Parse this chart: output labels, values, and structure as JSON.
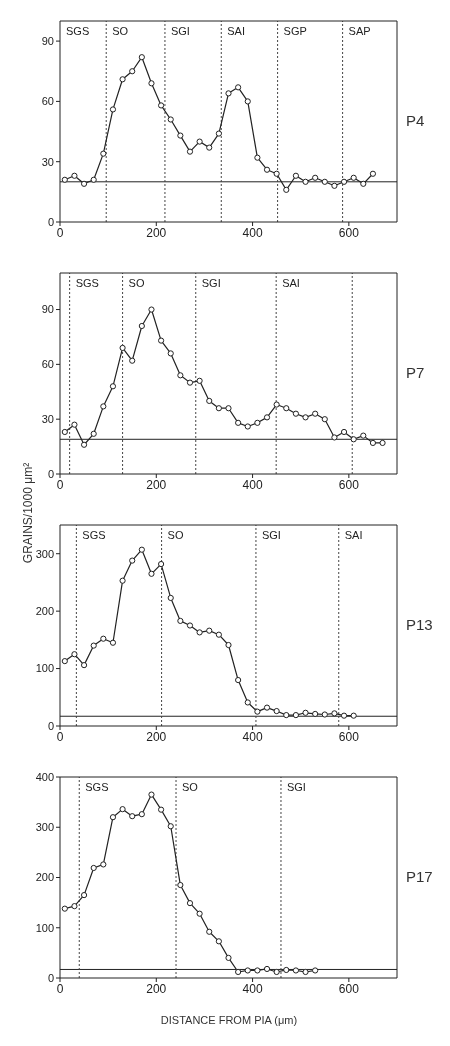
{
  "chart_data": [
    {
      "type": "line",
      "xlim": [
        0,
        700
      ],
      "xticks": [
        0,
        200,
        400,
        600
      ],
      "ylim": [
        0,
        100
      ],
      "yticks": [
        0,
        30,
        60,
        90
      ],
      "marker": "circle",
      "line_style": "solid",
      "x": [
        10,
        30,
        50,
        70,
        90,
        110,
        130,
        150,
        170,
        190,
        210,
        230,
        250,
        270,
        290,
        310,
        330,
        350,
        370,
        390,
        410,
        430,
        450,
        470,
        490,
        510,
        530,
        550,
        570,
        590,
        610,
        630,
        650
      ],
      "series": [
        {
          "color": "#222222",
          "values": [
            21,
            23,
            19,
            21,
            34,
            56,
            71,
            75,
            82,
            69,
            58,
            51,
            43,
            35,
            40,
            37,
            44,
            64,
            67,
            60,
            32,
            26,
            24,
            16,
            23,
            20,
            22,
            20,
            18,
            20,
            22,
            19,
            24
          ]
        }
      ],
      "ref_lines": [
        {
          "axis": "y",
          "value": 20,
          "color": "#222222",
          "line_style": "solid"
        },
        {
          "axis": "x",
          "value": 96,
          "color": "#444444",
          "line_style": "dotted"
        },
        {
          "axis": "x",
          "value": 218,
          "color": "#444444",
          "line_style": "dotted"
        },
        {
          "axis": "x",
          "value": 335,
          "color": "#444444",
          "line_style": "dotted"
        },
        {
          "axis": "x",
          "value": 452,
          "color": "#444444",
          "line_style": "dotted"
        },
        {
          "axis": "x",
          "value": 587,
          "color": "#444444",
          "line_style": "dotted"
        }
      ],
      "annotations": [
        "P4",
        "SGS",
        "SO",
        "SGI",
        "SAI",
        "SGP",
        "SAP"
      ]
    },
    {
      "type": "line",
      "ylabel": "GRAINS/1000 μm²",
      "xlim": [
        0,
        700
      ],
      "xticks": [
        0,
        200,
        400,
        600
      ],
      "ylim": [
        0,
        110
      ],
      "yticks": [
        0,
        30,
        60,
        90
      ],
      "marker": "circle",
      "line_style": "solid",
      "x": [
        10,
        30,
        50,
        70,
        90,
        110,
        130,
        150,
        170,
        190,
        210,
        230,
        250,
        270,
        290,
        310,
        330,
        350,
        370,
        390,
        410,
        430,
        450,
        470,
        490,
        510,
        530,
        550,
        570,
        590,
        610,
        630,
        650,
        670
      ],
      "series": [
        {
          "color": "#222222",
          "values": [
            23,
            27,
            16,
            22,
            37,
            48,
            69,
            62,
            81,
            90,
            73,
            66,
            54,
            50,
            51,
            40,
            36,
            36,
            28,
            26,
            28,
            31,
            38,
            36,
            33,
            31,
            33,
            30,
            20,
            23,
            19,
            21,
            17,
            17
          ]
        }
      ],
      "ref_lines": [
        {
          "axis": "y",
          "value": 19,
          "color": "#222222",
          "line_style": "solid"
        },
        {
          "axis": "x",
          "value": 20,
          "color": "#444444",
          "line_style": "dotted"
        },
        {
          "axis": "x",
          "value": 130,
          "color": "#444444",
          "line_style": "dotted"
        },
        {
          "axis": "x",
          "value": 282,
          "color": "#444444",
          "line_style": "dotted"
        },
        {
          "axis": "x",
          "value": 449,
          "color": "#444444",
          "line_style": "dotted"
        },
        {
          "axis": "x",
          "value": 607,
          "color": "#444444",
          "line_style": "dotted"
        }
      ],
      "annotations": [
        "P7",
        "SGS",
        "SO",
        "SGI",
        "SAI"
      ]
    },
    {
      "type": "line",
      "xlim": [
        0,
        700
      ],
      "xticks": [
        0,
        200,
        400,
        600
      ],
      "ylim": [
        0,
        350
      ],
      "yticks": [
        0,
        100,
        200,
        300
      ],
      "marker": "circle",
      "line_style": "solid",
      "x": [
        10,
        30,
        50,
        70,
        90,
        110,
        130,
        150,
        170,
        190,
        210,
        230,
        250,
        270,
        290,
        310,
        330,
        350,
        370,
        390,
        410,
        430,
        450,
        470,
        490,
        510,
        530,
        550,
        570,
        590,
        610
      ],
      "series": [
        {
          "color": "#222222",
          "values": [
            113,
            125,
            106,
            140,
            152,
            145,
            253,
            288,
            307,
            265,
            282,
            223,
            183,
            175,
            163,
            166,
            159,
            141,
            80,
            41,
            25,
            32,
            26,
            19,
            19,
            23,
            21,
            20,
            22,
            18,
            18
          ]
        }
      ],
      "ref_lines": [
        {
          "axis": "y",
          "value": 17,
          "color": "#222222",
          "line_style": "solid"
        },
        {
          "axis": "x",
          "value": 34,
          "color": "#444444",
          "line_style": "dotted"
        },
        {
          "axis": "x",
          "value": 211,
          "color": "#444444",
          "line_style": "dotted"
        },
        {
          "axis": "x",
          "value": 407,
          "color": "#444444",
          "line_style": "dotted"
        },
        {
          "axis": "x",
          "value": 579,
          "color": "#444444",
          "line_style": "dotted"
        }
      ],
      "annotations": [
        "P13",
        "SGS",
        "SO",
        "SGI",
        "SAI"
      ]
    },
    {
      "type": "line",
      "xlabel": "DISTANCE FROM PIA (μm)",
      "xlim": [
        0,
        700
      ],
      "xticks": [
        0,
        200,
        400,
        600
      ],
      "ylim": [
        0,
        400
      ],
      "yticks": [
        0,
        100,
        200,
        300,
        400
      ],
      "marker": "circle",
      "line_style": "solid",
      "x": [
        10,
        30,
        50,
        70,
        90,
        110,
        130,
        150,
        170,
        190,
        210,
        230,
        250,
        270,
        290,
        310,
        330,
        350,
        370,
        390,
        410,
        430,
        450,
        470,
        490,
        510,
        530
      ],
      "series": [
        {
          "color": "#222222",
          "values": [
            138,
            143,
            165,
            219,
            226,
            320,
            336,
            322,
            326,
            365,
            335,
            302,
            185,
            149,
            128,
            92,
            73,
            40,
            12,
            15,
            15,
            18,
            12,
            16,
            15,
            12,
            15
          ]
        }
      ],
      "ref_lines": [
        {
          "axis": "y",
          "value": 17,
          "color": "#222222",
          "line_style": "solid"
        },
        {
          "axis": "x",
          "value": 40,
          "color": "#444444",
          "line_style": "dotted"
        },
        {
          "axis": "x",
          "value": 241,
          "color": "#444444",
          "line_style": "dotted"
        },
        {
          "axis": "x",
          "value": 459,
          "color": "#444444",
          "line_style": "dotted"
        }
      ],
      "annotations": [
        "P17",
        "SGS",
        "SO",
        "SGI"
      ]
    }
  ]
}
